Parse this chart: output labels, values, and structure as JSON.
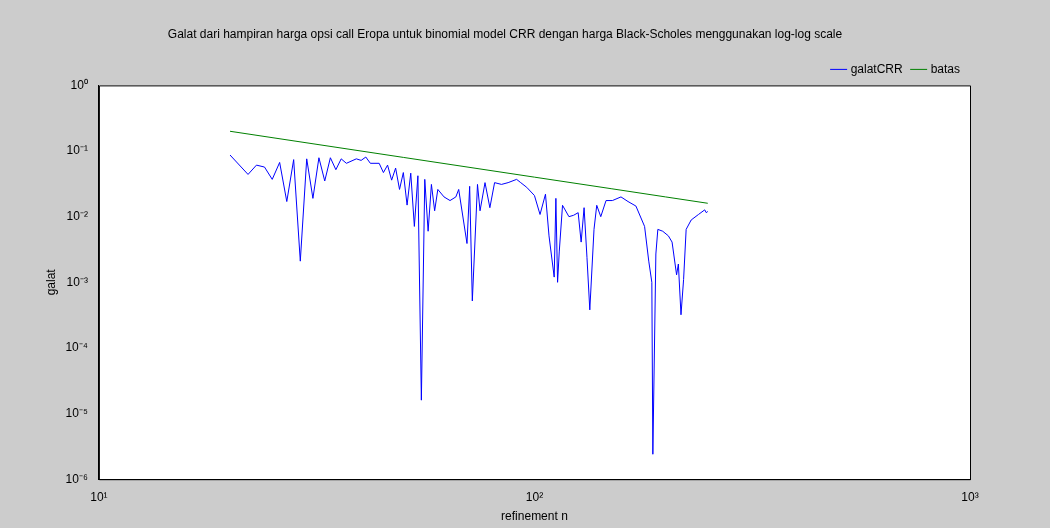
{
  "chart_data": {
    "type": "line",
    "title": "Galat dari hampiran harga opsi call Eropa untuk binomial model CRR dengan harga Black-Scholes menggunakan log-log scale",
    "xlabel": "refinement n",
    "ylabel": "galat",
    "log": "xy",
    "legend": "top right",
    "marker": "none",
    "line_style": "solid",
    "xlim": [
      10,
      1000
    ],
    "xticks": [
      {
        "value": 10,
        "label": "10¹"
      },
      {
        "value": 100,
        "label": "10²"
      },
      {
        "value": 1000,
        "label": "10³"
      }
    ],
    "ylim": [
      1e-06,
      1
    ],
    "yticks": [
      {
        "value": 1e-06,
        "label": "10⁻⁶"
      },
      {
        "value": 1e-05,
        "label": "10⁻⁵"
      },
      {
        "value": 0.0001,
        "label": "10⁻⁴"
      },
      {
        "value": 0.001,
        "label": "10⁻³"
      },
      {
        "value": 0.01,
        "label": "10⁻²"
      },
      {
        "value": 0.1,
        "label": "10⁻¹"
      },
      {
        "value": 1,
        "label": "10⁰"
      }
    ],
    "series": [
      {
        "name": "galatCRR",
        "color": "#0000ff",
        "x": [
          20,
          22,
          23,
          24,
          25,
          26,
          27,
          28,
          29,
          30,
          31,
          32,
          33,
          34,
          35,
          36,
          37,
          39,
          40,
          41,
          42,
          44,
          45,
          46,
          47,
          48,
          49,
          50,
          51,
          52,
          53,
          54,
          55,
          56,
          57,
          58,
          59,
          60,
          62,
          64,
          66,
          67,
          70,
          71,
          72,
          74,
          75,
          77,
          79,
          81,
          84,
          87,
          91,
          93,
          96,
          100,
          103,
          106,
          108,
          111,
          112,
          113,
          114,
          116,
          120,
          123,
          126,
          128,
          130,
          132,
          134,
          137,
          139,
          142,
          146,
          151,
          158,
          164,
          171,
          179,
          183,
          186,
          187,
          190,
          192,
          197,
          203,
          207,
          212,
          214,
          217,
          220,
          223,
          229,
          238,
          246,
          248,
          250
        ],
        "values": [
          0.087,
          0.044,
          0.061,
          0.057,
          0.037,
          0.067,
          0.017,
          0.074,
          0.0021,
          0.076,
          0.019,
          0.079,
          0.035,
          0.079,
          0.052,
          0.076,
          0.065,
          0.076,
          0.072,
          0.081,
          0.065,
          0.065,
          0.047,
          0.061,
          0.036,
          0.055,
          0.026,
          0.047,
          0.015,
          0.046,
          0.0071,
          0.042,
          1.6e-05,
          0.037,
          0.006,
          0.031,
          0.0123,
          0.026,
          0.02,
          0.0176,
          0.02,
          0.026,
          0.0039,
          0.029,
          0.00052,
          0.031,
          0.0123,
          0.033,
          0.0137,
          0.033,
          0.031,
          0.033,
          0.037,
          0.033,
          0.028,
          0.021,
          0.0108,
          0.022,
          0.0051,
          0.0012,
          0.019,
          0.001,
          0.0029,
          0.0149,
          0.01,
          0.0105,
          0.0115,
          0.0041,
          0.0137,
          0.0024,
          0.00038,
          0.0064,
          0.0149,
          0.01,
          0.0176,
          0.0176,
          0.02,
          0.017,
          0.0145,
          0.0071,
          0.0021,
          0.001,
          2.4e-06,
          0.0027,
          0.0064,
          0.006,
          0.0051,
          0.0041,
          0.0013,
          0.0019,
          0.00032,
          0.0011,
          0.0064,
          0.0089,
          0.0108,
          0.0127,
          0.0115,
          0.012
        ]
      },
      {
        "name": "batas",
        "color": "#008000",
        "x": [
          20,
          50,
          100,
          150,
          200,
          250
        ],
        "values": [
          0.2,
          0.08,
          0.04,
          0.0267,
          0.02,
          0.016
        ]
      }
    ]
  }
}
